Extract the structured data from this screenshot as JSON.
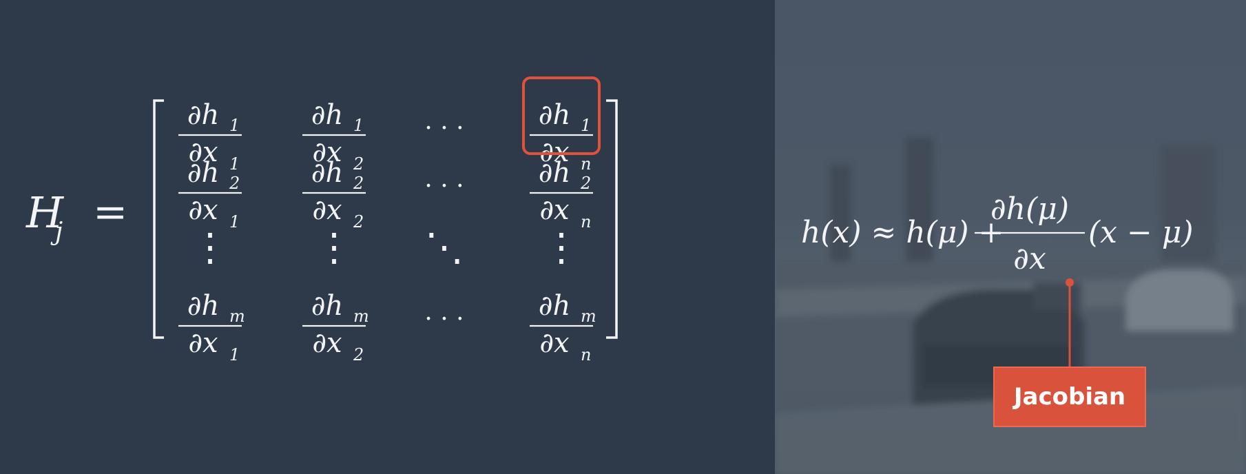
{
  "lhs": {
    "symbol": "H",
    "subscript": "j",
    "equals": "="
  },
  "matrix": {
    "rows": [
      [
        {
          "num": "∂h",
          "num_sub": "1",
          "den": "∂x",
          "den_sub": "1"
        },
        {
          "num": "∂h",
          "num_sub": "1",
          "den": "∂x",
          "den_sub": "2"
        },
        {
          "dots": "· · ·"
        },
        {
          "num": "∂h",
          "num_sub": "1",
          "den": "∂x",
          "den_sub": "n"
        }
      ],
      [
        {
          "num": "∂h",
          "num_sub": "2",
          "den": "∂x",
          "den_sub": "1"
        },
        {
          "num": "∂h",
          "num_sub": "2",
          "den": "∂x",
          "den_sub": "2"
        },
        {
          "dots": "· · ·"
        },
        {
          "num": "∂h",
          "num_sub": "2",
          "den": "∂x",
          "den_sub": "n"
        }
      ],
      [
        {
          "dots": "⋮"
        },
        {
          "dots": "⋮"
        },
        {
          "dots": "⋱"
        },
        {
          "dots": "⋮"
        }
      ],
      [
        {
          "num": "∂h",
          "num_sub": "m",
          "den": "∂x",
          "den_sub": "1"
        },
        {
          "num": "∂h",
          "num_sub": "m",
          "den": "∂x",
          "den_sub": "2"
        },
        {
          "dots": "· · ·"
        },
        {
          "num": "∂h",
          "num_sub": "m",
          "den": "∂x",
          "den_sub": "n"
        }
      ]
    ]
  },
  "taylor": {
    "lhs": "h(x) ≈ h(μ) +",
    "frac_num": "∂h(μ)",
    "frac_den": "∂x",
    "tail": "(x − μ)"
  },
  "callout": {
    "label": "Jacobian"
  },
  "colors": {
    "accent": "#d9533c",
    "left_bg": "#2e3a49",
    "right_bg": "#4c5866",
    "math": "#f2f4f6"
  }
}
